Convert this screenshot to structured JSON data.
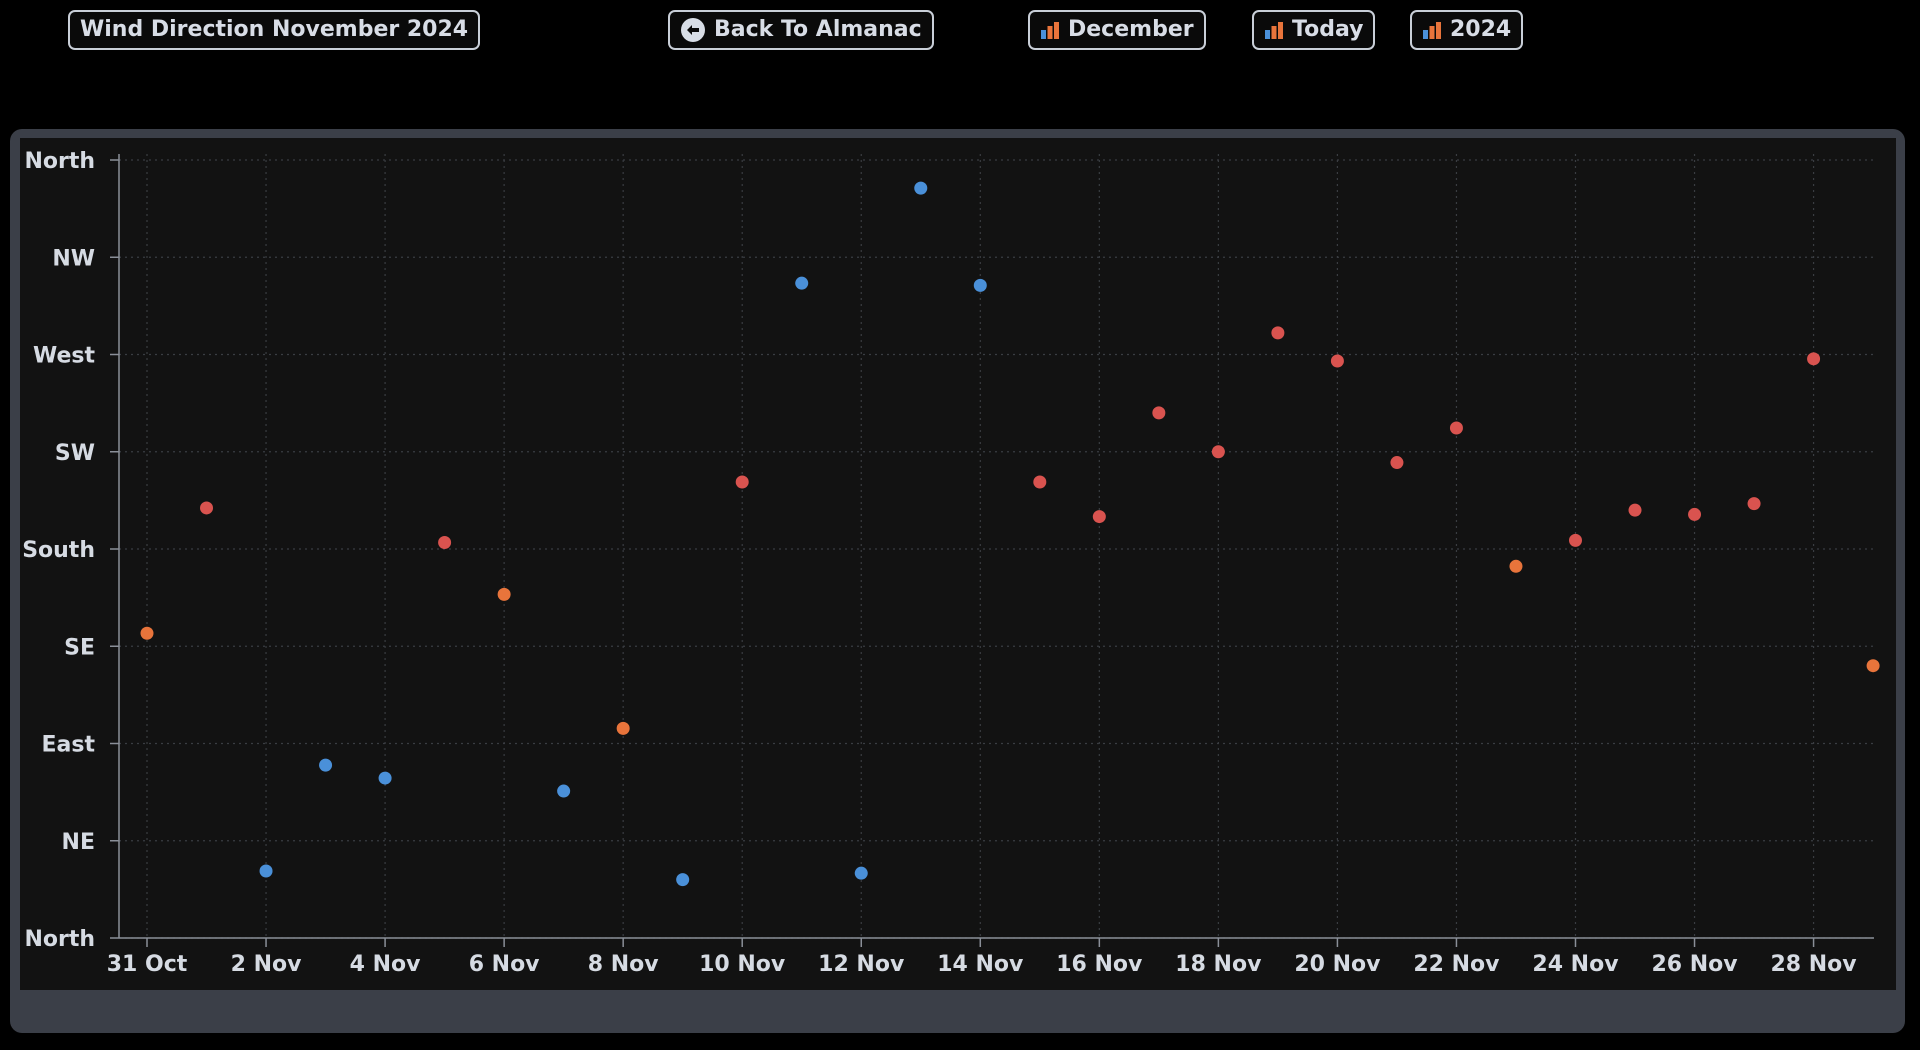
{
  "header": {
    "title": "Wind Direction November 2024",
    "back_label": "Back To Almanac",
    "month_label": "December",
    "today_label": "Today",
    "year_label": "2024"
  },
  "icons": {
    "back": "back-arrow-circle-icon",
    "chart": "bar-chart-icon"
  },
  "colors": {
    "background": "#000000",
    "plot_bg": "#121212",
    "frame": "#3b3f48",
    "blue": "#4a90d9",
    "red": "#d9534f",
    "orange": "#e8743b"
  },
  "chart_data": {
    "type": "scatter",
    "title": "Wind Direction November 2024",
    "xlabel": "",
    "ylabel": "",
    "x_tick_labels": [
      "31 Oct",
      "2 Nov",
      "4 Nov",
      "6 Nov",
      "8 Nov",
      "10 Nov",
      "12 Nov",
      "14 Nov",
      "16 Nov",
      "18 Nov",
      "20 Nov",
      "22 Nov",
      "24 Nov",
      "26 Nov",
      "28 Nov"
    ],
    "x_tick_days": [
      0,
      2,
      4,
      6,
      8,
      10,
      12,
      14,
      16,
      18,
      20,
      22,
      24,
      26,
      28
    ],
    "xlim": [
      0,
      29.2
    ],
    "y_tick_labels": [
      "North",
      "NE",
      "East",
      "SE",
      "South",
      "SW",
      "West",
      "NW",
      "North"
    ],
    "ylim": [
      0,
      360
    ],
    "grid": true,
    "points": [
      {
        "date": "31 Oct",
        "degrees": 141,
        "color": "orange"
      },
      {
        "date": "1 Nov",
        "degrees": 199,
        "color": "red"
      },
      {
        "date": "2 Nov",
        "degrees": 31,
        "color": "blue"
      },
      {
        "date": "3 Nov",
        "degrees": 80,
        "color": "blue"
      },
      {
        "date": "4 Nov",
        "degrees": 74,
        "color": "blue"
      },
      {
        "date": "5 Nov",
        "degrees": 183,
        "color": "red"
      },
      {
        "date": "6 Nov",
        "degrees": 159,
        "color": "orange"
      },
      {
        "date": "7 Nov",
        "degrees": 68,
        "color": "blue"
      },
      {
        "date": "8 Nov",
        "degrees": 97,
        "color": "orange"
      },
      {
        "date": "9 Nov",
        "degrees": 27,
        "color": "blue"
      },
      {
        "date": "10 Nov",
        "degrees": 211,
        "color": "red"
      },
      {
        "date": "11 Nov",
        "degrees": 303,
        "color": "blue"
      },
      {
        "date": "12 Nov",
        "degrees": 30,
        "color": "blue"
      },
      {
        "date": "13 Nov",
        "degrees": 347,
        "color": "blue"
      },
      {
        "date": "14 Nov",
        "degrees": 302,
        "color": "blue"
      },
      {
        "date": "15 Nov",
        "degrees": 211,
        "color": "red"
      },
      {
        "date": "16 Nov",
        "degrees": 195,
        "color": "red"
      },
      {
        "date": "17 Nov",
        "degrees": 243,
        "color": "red"
      },
      {
        "date": "18 Nov",
        "degrees": 225,
        "color": "red"
      },
      {
        "date": "19 Nov",
        "degrees": 280,
        "color": "red"
      },
      {
        "date": "20 Nov",
        "degrees": 267,
        "color": "red"
      },
      {
        "date": "21 Nov",
        "degrees": 220,
        "color": "red"
      },
      {
        "date": "22 Nov",
        "degrees": 236,
        "color": "red"
      },
      {
        "date": "23 Nov",
        "degrees": 172,
        "color": "orange"
      },
      {
        "date": "24 Nov",
        "degrees": 184,
        "color": "red"
      },
      {
        "date": "25 Nov",
        "degrees": 198,
        "color": "red"
      },
      {
        "date": "26 Nov",
        "degrees": 196,
        "color": "red"
      },
      {
        "date": "27 Nov",
        "degrees": 201,
        "color": "red"
      },
      {
        "date": "28 Nov",
        "degrees": 268,
        "color": "red"
      },
      {
        "date": "29 Nov",
        "degrees": 126,
        "color": "orange"
      }
    ]
  }
}
